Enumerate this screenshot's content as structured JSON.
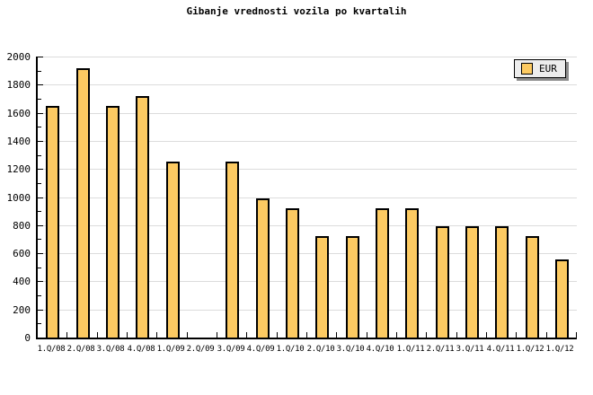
{
  "chart_data": {
    "type": "bar",
    "title": "Gibanje vrednosti vozila po kvartalih",
    "legend_label": "EUR",
    "legend_position": "top-right",
    "grid": "horizontal-major",
    "categories": [
      "1.Q/08",
      "2.Q/08",
      "3.Q/08",
      "4.Q/08",
      "1.Q/09",
      "2.Q/09",
      "3.Q/09",
      "4.Q/09",
      "1.Q/10",
      "2.Q/10",
      "3.Q/10",
      "4.Q/10",
      "1.Q/11",
      "2.Q/11",
      "3.Q/11",
      "4.Q/11",
      "1.Q/12",
      "1.Q/12"
    ],
    "values": [
      1650,
      1920,
      1650,
      1720,
      1255,
      0,
      1255,
      990,
      920,
      720,
      720,
      920,
      920,
      790,
      790,
      790,
      720,
      555
    ],
    "ylim": [
      0,
      2000
    ],
    "y_ticks": [
      0,
      200,
      400,
      600,
      800,
      1000,
      1200,
      1400,
      1600,
      1800,
      2000
    ],
    "y_minor_step": 100,
    "colors": {
      "bar_fill": "#FCCA62",
      "bar_border": "#000000",
      "grid": "#DCDCDC",
      "axis": "#000000",
      "text": "#000000",
      "legend_bg": "#EDEDED",
      "legend_shadow": "#8C8C8C",
      "background": "#FFFFFF"
    }
  }
}
